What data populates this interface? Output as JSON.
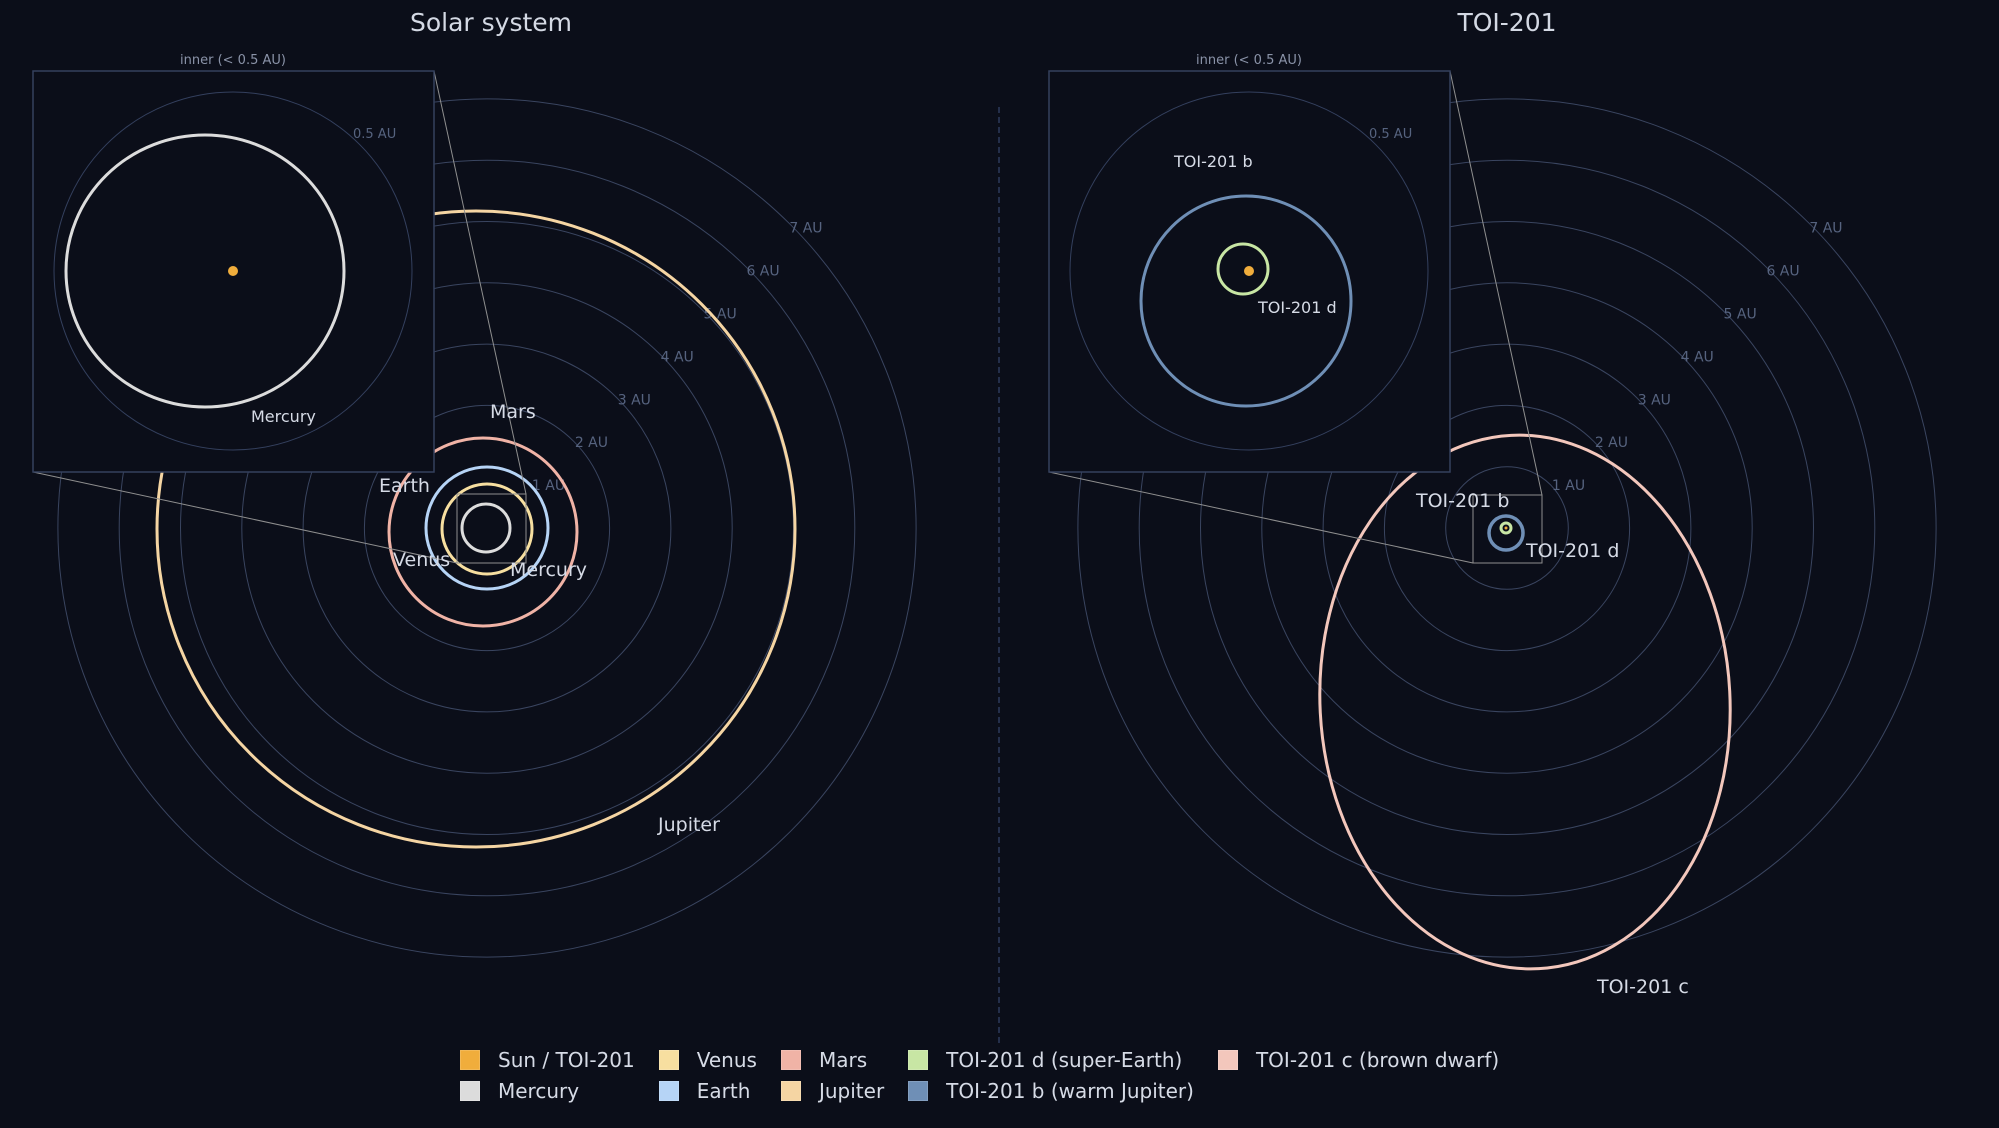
{
  "titles": {
    "left": "Solar system",
    "right": "TOI-201"
  },
  "inset": {
    "title": "inner (< 0.5 AU)",
    "ring_label": "0.5 AU"
  },
  "grid_labels": [
    "1 AU",
    "2 AU",
    "3 AU",
    "4 AU",
    "5 AU",
    "6 AU",
    "7 AU"
  ],
  "colors": {
    "background": "#0b0e19",
    "grid": "#3a4560",
    "grid_label": "#56637f",
    "inset_border": "#34405e",
    "connector": "#8f8f8f",
    "divider": "#2c3a5c",
    "sun": "#f0ad3c",
    "mercury": "#dcdcdc",
    "venus": "#f7dfa0",
    "earth": "#b6d4f6",
    "mars": "#f0b3a6",
    "jupiter": "#f5d5a3",
    "toi_d": "#c8e6a4",
    "toi_b": "#6f8fb6",
    "toi_c": "#f3c7bc"
  },
  "labels": {
    "solar_mercury_inset": "Mercury",
    "solar_mars": "Mars",
    "solar_earth": "Earth",
    "solar_venus": "Venus",
    "solar_mercury": "Mercury",
    "solar_jupiter": "Jupiter",
    "toi_b_inset": "TOI-201 b",
    "toi_d_inset": "TOI-201 d",
    "toi_b": "TOI-201 b",
    "toi_d": "TOI-201 d",
    "toi_c": "TOI-201 c"
  },
  "legend": [
    {
      "label": "Sun / TOI-201",
      "color": "#f0ad3c"
    },
    {
      "label": "Mercury",
      "color": "#dcdcdc"
    },
    {
      "label": "Venus",
      "color": "#f7dfa0"
    },
    {
      "label": "Earth",
      "color": "#b6d4f6"
    },
    {
      "label": "Mars",
      "color": "#f0b3a6"
    },
    {
      "label": "Jupiter",
      "color": "#f5d5a3"
    },
    {
      "label": "TOI-201 d (super-Earth)",
      "color": "#c8e6a4"
    },
    {
      "label": "TOI-201 b (warm Jupiter)",
      "color": "#6f8fb6"
    },
    {
      "label": "TOI-201 c (brown dwarf)",
      "color": "#f3c7bc"
    }
  ],
  "chart_data": [
    {
      "type": "scatter",
      "title": "Solar system",
      "xlabel": "",
      "ylabel": "",
      "grid_rings_au": [
        1,
        2,
        3,
        4,
        5,
        6,
        7
      ],
      "inset": {
        "title": "inner (< 0.5 AU)",
        "range_au": 0.5
      },
      "orbits": [
        {
          "name": "Mercury",
          "a_au": 0.39,
          "e": 0.21
        },
        {
          "name": "Venus",
          "a_au": 0.72,
          "e": 0.01
        },
        {
          "name": "Earth",
          "a_au": 1.0,
          "e": 0.02
        },
        {
          "name": "Mars",
          "a_au": 1.52,
          "e": 0.09
        },
        {
          "name": "Jupiter",
          "a_au": 5.2,
          "e": 0.05
        }
      ]
    },
    {
      "type": "scatter",
      "title": "TOI-201",
      "xlabel": "",
      "ylabel": "",
      "grid_rings_au": [
        1,
        2,
        3,
        4,
        5,
        6,
        7
      ],
      "inset": {
        "title": "inner (< 0.5 AU)",
        "range_au": 0.5
      },
      "orbits": [
        {
          "name": "TOI-201 d (super-Earth)",
          "a_au": 0.07,
          "e": 0.0
        },
        {
          "name": "TOI-201 b (warm Jupiter)",
          "a_au": 0.3,
          "e": 0.1
        },
        {
          "name": "TOI-201 c (brown dwarf)",
          "a_au": 3.9,
          "e": 0.6
        }
      ]
    }
  ]
}
